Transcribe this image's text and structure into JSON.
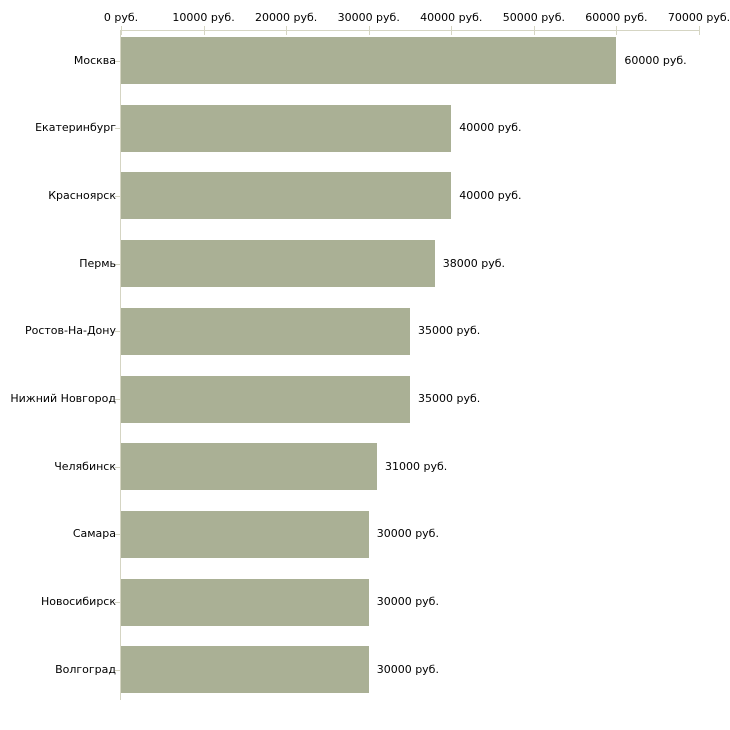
{
  "chart_data": {
    "type": "bar",
    "orientation": "horizontal",
    "title": "",
    "categories": [
      "Москва",
      "Екатеринбург",
      "Красноярск",
      "Пермь",
      "Ростов-На-Дону",
      "Нижний Новгород",
      "Челябинск",
      "Самара",
      "Новосибирск",
      "Волгоград"
    ],
    "values": [
      60000,
      40000,
      40000,
      38000,
      35000,
      35000,
      31000,
      30000,
      30000,
      30000
    ],
    "value_labels": [
      "60000 руб.",
      "40000 руб.",
      "40000 руб.",
      "38000 руб.",
      "35000 руб.",
      "35000 руб.",
      "31000 руб.",
      "30000 руб.",
      "30000 руб.",
      "30000 руб."
    ],
    "x_axis": {
      "position": "top",
      "range": [
        0,
        70000
      ],
      "tick_values": [
        0,
        10000,
        20000,
        30000,
        40000,
        50000,
        60000,
        70000
      ],
      "tick_labels": [
        "0 руб.",
        "10000 руб.",
        "20000 руб.",
        "30000 руб.",
        "40000 руб.",
        "50000 руб.",
        "60000 руб.",
        "70000 руб."
      ]
    },
    "ylabel": "",
    "xlabel": "",
    "legend": "none",
    "grid": false,
    "colors": {
      "bar": "#aab095",
      "axis": "#d5d5c3",
      "text": "#000000",
      "background": "#ffffff"
    }
  }
}
